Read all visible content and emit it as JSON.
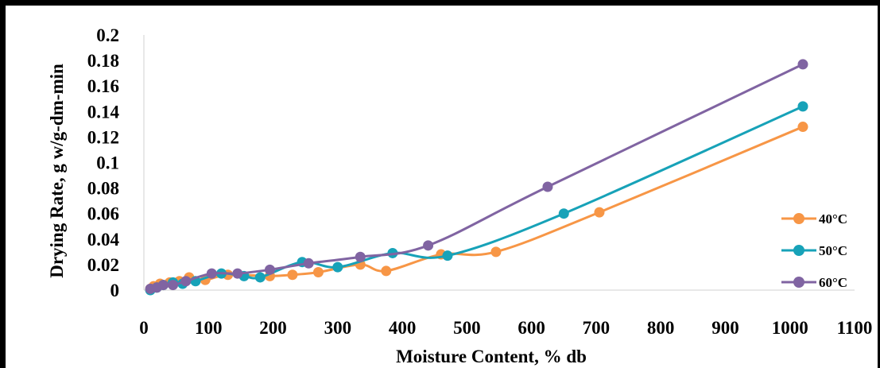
{
  "chart_data": {
    "type": "line",
    "title": "",
    "xlabel": "Moisture Content, % db",
    "ylabel": "Drying Rate, g w/g-dm-min",
    "xlim": [
      0,
      1100
    ],
    "ylim": [
      0,
      0.2
    ],
    "x_ticks": [
      "0",
      "100",
      "200",
      "300",
      "400",
      "500",
      "600",
      "700",
      "800",
      "900",
      "1000",
      "1100"
    ],
    "y_ticks": [
      "0",
      "0.02",
      "0.04",
      "0.06",
      "0.08",
      "0.1",
      "0.12",
      "0.14",
      "0.16",
      "0.18",
      "0.2"
    ],
    "grid": false,
    "legend_position": "right",
    "series": [
      {
        "name": "40°C",
        "color": "#F79646",
        "points": [
          [
            10,
            0.001
          ],
          [
            15,
            0.003
          ],
          [
            25,
            0.005
          ],
          [
            40,
            0.006
          ],
          [
            55,
            0.007
          ],
          [
            70,
            0.01
          ],
          [
            95,
            0.008
          ],
          [
            130,
            0.012
          ],
          [
            195,
            0.011
          ],
          [
            230,
            0.012
          ],
          [
            270,
            0.014
          ],
          [
            335,
            0.02
          ],
          [
            375,
            0.015
          ],
          [
            460,
            0.028
          ],
          [
            545,
            0.03
          ],
          [
            705,
            0.061
          ],
          [
            1020,
            0.128
          ]
        ]
      },
      {
        "name": "50°C",
        "color": "#17A2B8",
        "points": [
          [
            10,
            0.0
          ],
          [
            20,
            0.002
          ],
          [
            30,
            0.004
          ],
          [
            45,
            0.006
          ],
          [
            60,
            0.005
          ],
          [
            80,
            0.007
          ],
          [
            120,
            0.013
          ],
          [
            155,
            0.011
          ],
          [
            180,
            0.01
          ],
          [
            245,
            0.022
          ],
          [
            300,
            0.018
          ],
          [
            385,
            0.029
          ],
          [
            470,
            0.027
          ],
          [
            650,
            0.06
          ],
          [
            1020,
            0.144
          ]
        ]
      },
      {
        "name": "60°C",
        "color": "#8064A2",
        "points": [
          [
            10,
            0.001
          ],
          [
            20,
            0.002
          ],
          [
            30,
            0.004
          ],
          [
            45,
            0.004
          ],
          [
            65,
            0.007
          ],
          [
            105,
            0.013
          ],
          [
            145,
            0.013
          ],
          [
            195,
            0.016
          ],
          [
            255,
            0.021
          ],
          [
            335,
            0.026
          ],
          [
            440,
            0.035
          ],
          [
            625,
            0.081
          ],
          [
            1020,
            0.177
          ]
        ]
      }
    ]
  }
}
